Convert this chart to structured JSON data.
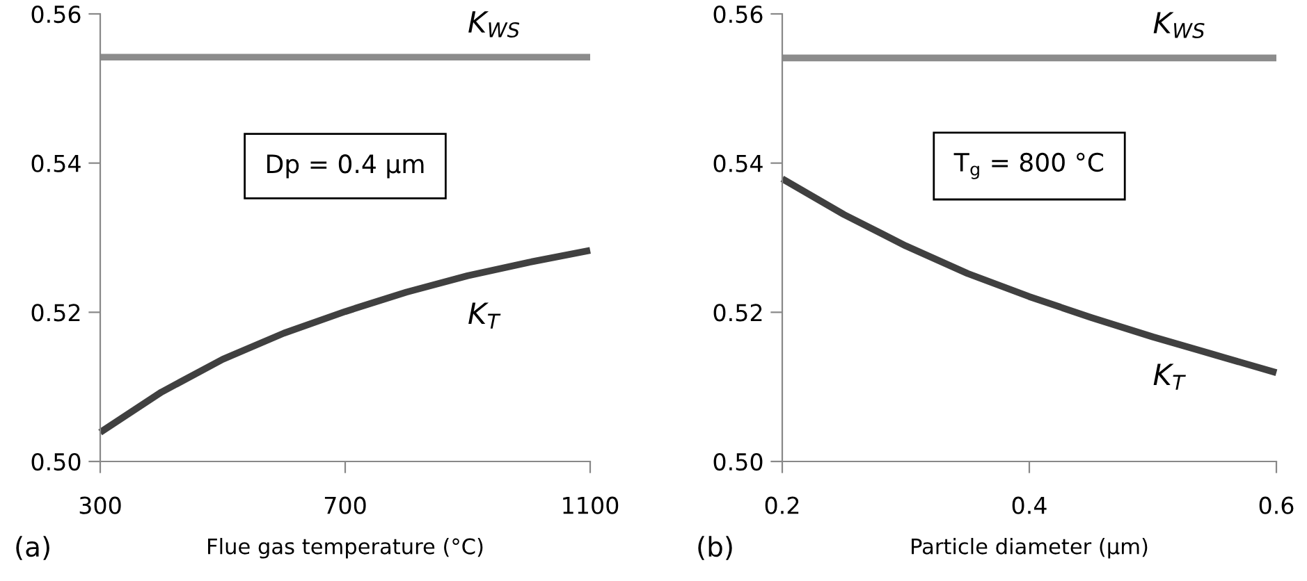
{
  "chart_data": [
    {
      "type": "line",
      "xlabel": "Flue gas temperature (°C)",
      "x": [
        300,
        400,
        500,
        600,
        700,
        800,
        900,
        1000,
        1100
      ],
      "xlim": [
        300,
        1100
      ],
      "xticks": [
        300,
        700,
        1100
      ],
      "ylim": [
        0.5,
        0.56
      ],
      "yticks": [
        {
          "value": 0.5,
          "label": "0.50"
        },
        0.52,
        0.54,
        0.56
      ],
      "grid": false,
      "legend": false,
      "series": [
        {
          "name": "K$_{WS}$",
          "color": "#8c8c8c",
          "values": [
            0.5542,
            0.5542,
            0.5542,
            0.5542,
            0.5542,
            0.5542,
            0.5542,
            0.5542,
            0.5542
          ]
        },
        {
          "name": "K$_{T}$",
          "color": "#404040",
          "values": [
            0.5039,
            0.5093,
            0.5137,
            0.5172,
            0.5201,
            0.5227,
            0.5249,
            0.5267,
            0.5283
          ]
        }
      ],
      "annotations": [
        "Dp = 0.4 µm",
        "(a)"
      ]
    },
    {
      "type": "line",
      "xlabel": "Particle diameter (µm)",
      "x": [
        0.2,
        0.25,
        0.3,
        0.35,
        0.4,
        0.45,
        0.5,
        0.55,
        0.6
      ],
      "xlim": [
        0.2,
        0.6
      ],
      "xticks": [
        0.2,
        0.4,
        0.6
      ],
      "ylim": [
        0.5,
        0.56
      ],
      "yticks": [
        {
          "value": 0.5,
          "label": "0.50"
        },
        0.52,
        0.54,
        0.56
      ],
      "grid": false,
      "legend": false,
      "series": [
        {
          "name": "K$_{WS}$",
          "color": "#8c8c8c",
          "values": [
            0.5541,
            0.5541,
            0.5541,
            0.5541,
            0.5541,
            0.5541,
            0.5541,
            0.5541,
            0.5541
          ]
        },
        {
          "name": "K$_{T}$",
          "color": "#404040",
          "values": [
            0.5379,
            0.5331,
            0.5289,
            0.5252,
            0.5221,
            0.5193,
            0.5167,
            0.5143,
            0.5119
          ]
        }
      ],
      "annotations": [
        "T$_{g}$ = 800 °C",
        "(b)"
      ]
    }
  ]
}
